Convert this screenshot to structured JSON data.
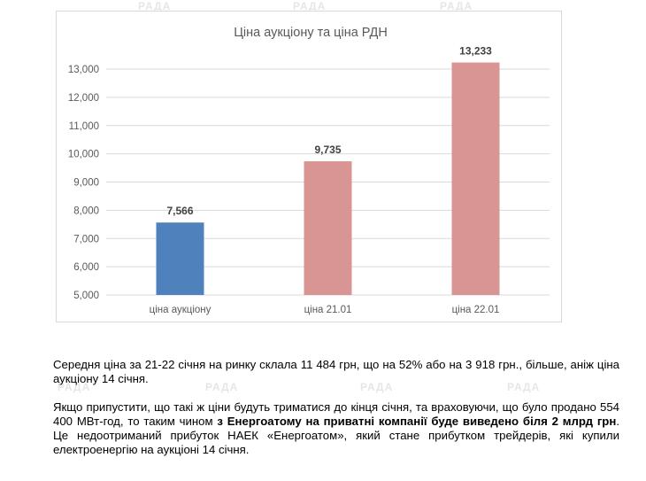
{
  "watermark": "РАДА",
  "chart_data": {
    "type": "bar",
    "title": "Ціна аукціону та ціна РДН",
    "categories": [
      "ціна аукціону",
      "ціна 21.01",
      "ціна 22.01"
    ],
    "values": [
      7566,
      9735,
      13233
    ],
    "value_labels": [
      "7,566",
      "9,735",
      "13,233"
    ],
    "bar_colors": [
      "#4f81bd",
      "#d99594",
      "#d99594"
    ],
    "ylim": [
      5000,
      13000
    ],
    "yticks": [
      5000,
      6000,
      7000,
      8000,
      9000,
      10000,
      11000,
      12000,
      13000
    ],
    "ytick_labels": [
      "5,000",
      "6,000",
      "7,000",
      "8,000",
      "9,000",
      "10,000",
      "11,000",
      "12,000",
      "13,000"
    ],
    "grid": true,
    "legend": false,
    "xlabel": "",
    "ylabel": ""
  },
  "text": {
    "p1": "Середня ціна за 21-22 січня на ринку склала 11 484 грн, що на 52% або на 3 918 грн., більше, аніж ціна аукціону 14 січня.",
    "p2_a": "Якщо припустити, що такі ж ціни будуть триматися до кінця січня, та враховуючи, що було продано 554 400 МВт-год, то таким чином ",
    "p2_b": "з Енергоатому на приватні компанії буде виведено біля 2 млрд грн",
    "p2_c": ". Це недоотриманий прибуток НАЕК «Енергоатом», який стане прибутком трейдерів, які купили електроенергію на аукціоні 14 січня."
  }
}
